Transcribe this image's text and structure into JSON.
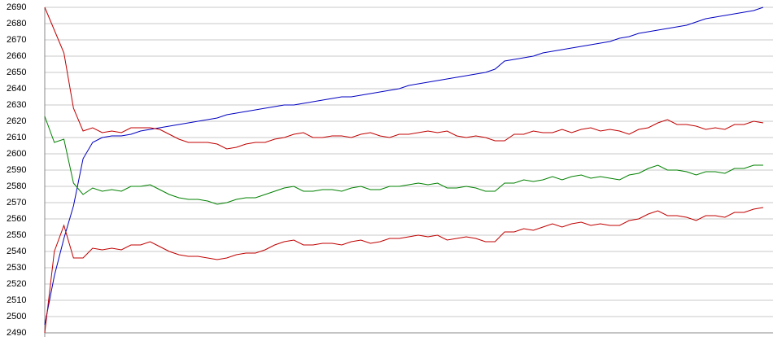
{
  "chart_data": {
    "type": "line",
    "categories": [
      null,
      null,
      null,
      null,
      null,
      null,
      null,
      null,
      null,
      null,
      null,
      null,
      null,
      null,
      null,
      null,
      null,
      null,
      null,
      null,
      null,
      null,
      null,
      null,
      null,
      null,
      null,
      null,
      null,
      null,
      null,
      null,
      null,
      null,
      null,
      null,
      null,
      null,
      null,
      null,
      null,
      null,
      null,
      null,
      null,
      null,
      null,
      null,
      null,
      null,
      null,
      null,
      null,
      null,
      null,
      null,
      null,
      null,
      null,
      null,
      null,
      null,
      null,
      null,
      null,
      null,
      null,
      null,
      null,
      null,
      null,
      null,
      null,
      null,
      null,
      null
    ],
    "series": [
      {
        "color": "#0000c0",
        "values": [
          2495,
          2525,
          2548,
          2568,
          2597,
          2607,
          2610,
          2611,
          2611,
          2612,
          2614,
          2615,
          2616,
          2617,
          2618,
          2619,
          2620,
          2621,
          2622,
          2624,
          2625,
          2626,
          2627,
          2628,
          2629,
          2630,
          2630,
          2631,
          2632,
          2633,
          2634,
          2635,
          2635,
          2636,
          2637,
          2638,
          2639,
          2640,
          2642,
          2643,
          2644,
          2645,
          2646,
          2647,
          2648,
          2649,
          2650,
          2652,
          2657,
          2658,
          2659,
          2660,
          2662,
          2663,
          2664,
          2665,
          2666,
          2667,
          2668,
          2669,
          2671,
          2672,
          2674,
          2675,
          2676,
          2677,
          2678,
          2679,
          2681,
          2683,
          2684,
          2685,
          2686,
          2687,
          2688,
          2690
        ]
      },
      {
        "color": "#c00000",
        "values": [
          2690,
          2676,
          2662,
          2628,
          2614,
          2616,
          2613,
          2614,
          2613,
          2616,
          2616,
          2616,
          2615,
          2612,
          2609,
          2607,
          2607,
          2607,
          2606,
          2603,
          2604,
          2606,
          2607,
          2607,
          2609,
          2610,
          2612,
          2613,
          2610,
          2610,
          2611,
          2611,
          2610,
          2612,
          2613,
          2611,
          2610,
          2612,
          2612,
          2613,
          2614,
          2613,
          2614,
          2611,
          2610,
          2611,
          2610,
          2608,
          2608,
          2612,
          2612,
          2614,
          2613,
          2613,
          2615,
          2613,
          2615,
          2616,
          2614,
          2615,
          2614,
          2612,
          2615,
          2616,
          2619,
          2621,
          2618,
          2618,
          2617,
          2615,
          2616,
          2615,
          2618,
          2618,
          2620,
          2619
        ]
      },
      {
        "color": "#008000",
        "values": [
          2623,
          2607,
          2609,
          2582,
          2575,
          2579,
          2577,
          2578,
          2577,
          2580,
          2580,
          2581,
          2578,
          2575,
          2573,
          2572,
          2572,
          2571,
          2569,
          2570,
          2572,
          2573,
          2573,
          2575,
          2577,
          2579,
          2580,
          2577,
          2577,
          2578,
          2578,
          2577,
          2579,
          2580,
          2578,
          2578,
          2580,
          2580,
          2581,
          2582,
          2581,
          2582,
          2579,
          2579,
          2580,
          2579,
          2577,
          2577,
          2582,
          2582,
          2584,
          2583,
          2584,
          2586,
          2584,
          2586,
          2587,
          2585,
          2586,
          2585,
          2584,
          2587,
          2588,
          2591,
          2593,
          2590,
          2590,
          2589,
          2587,
          2589,
          2589,
          2588,
          2591,
          2591,
          2593,
          2593
        ]
      },
      {
        "color": "#c00000",
        "values": [
          2490,
          2540,
          2556,
          2536,
          2536,
          2542,
          2541,
          2542,
          2541,
          2544,
          2544,
          2546,
          2543,
          2540,
          2538,
          2537,
          2537,
          2536,
          2535,
          2536,
          2538,
          2539,
          2539,
          2541,
          2544,
          2546,
          2547,
          2544,
          2544,
          2545,
          2545,
          2544,
          2546,
          2547,
          2545,
          2546,
          2548,
          2548,
          2549,
          2550,
          2549,
          2550,
          2547,
          2548,
          2549,
          2548,
          2546,
          2546,
          2552,
          2552,
          2554,
          2553,
          2555,
          2557,
          2555,
          2557,
          2558,
          2556,
          2557,
          2556,
          2556,
          2559,
          2560,
          2563,
          2565,
          2562,
          2562,
          2561,
          2559,
          2562,
          2562,
          2561,
          2564,
          2564,
          2566,
          2567
        ]
      }
    ],
    "ylim": [
      2490,
      2690
    ],
    "yticks": [
      2490,
      2500,
      2510,
      2520,
      2530,
      2540,
      2550,
      2560,
      2570,
      2580,
      2590,
      2600,
      2610,
      2620,
      2630,
      2640,
      2650,
      2660,
      2670,
      2680,
      2690
    ],
    "grid": true
  }
}
